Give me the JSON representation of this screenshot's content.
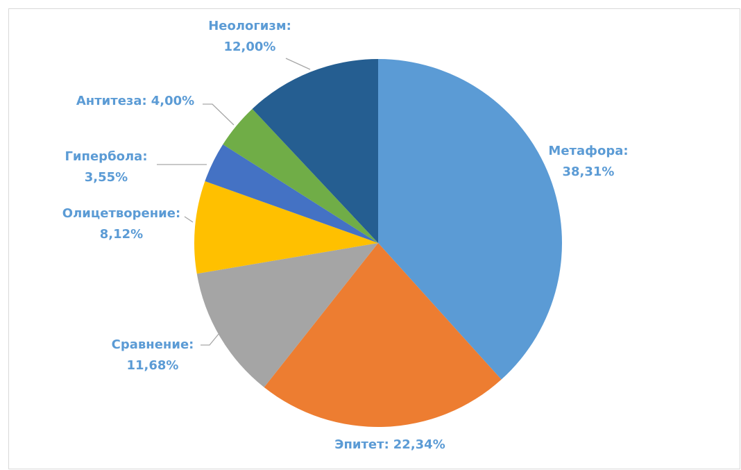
{
  "chart_data": {
    "type": "pie",
    "categories": [
      "Метафора:",
      "Эпитет:",
      "Сравнение:",
      "Олицетворение:",
      "Гипербола:",
      "Антитеза:",
      "Неологизм:"
    ],
    "values": [
      38.31,
      22.34,
      11.68,
      8.12,
      3.55,
      4.0,
      12.0
    ],
    "value_labels": [
      "38,31%",
      "22,34%",
      "11,68%",
      "8,12%",
      "3,55%",
      "4,00%",
      "12,00%"
    ],
    "colors": [
      "#5b9bd5",
      "#ed7d31",
      "#a5a5a5",
      "#ffc000",
      "#4472c4",
      "#70ad47",
      "#255e91"
    ]
  }
}
